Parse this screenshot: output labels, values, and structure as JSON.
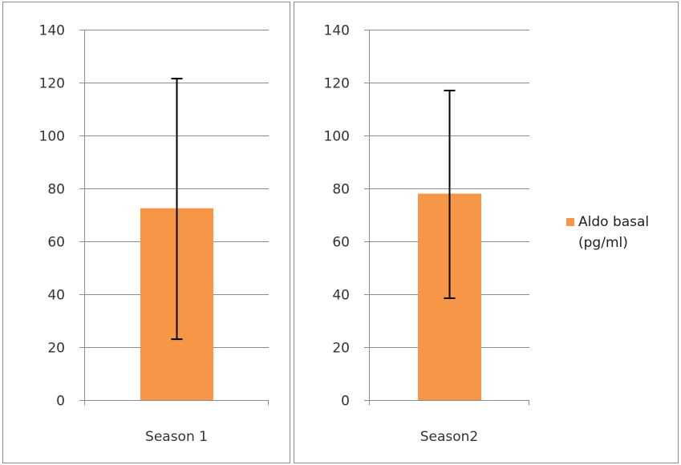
{
  "chart_data": [
    {
      "type": "bar",
      "categories": [
        "Season 1"
      ],
      "series": [
        {
          "name": "Aldo basal (pg/ml)",
          "values": [
            72.5
          ],
          "error_low": [
            23
          ],
          "error_high": [
            121.5
          ]
        }
      ],
      "ylim": [
        0,
        140
      ],
      "yticks": [
        0,
        20,
        40,
        60,
        80,
        100,
        120,
        140
      ],
      "grid": true,
      "bar_color": "#F79646"
    },
    {
      "type": "bar",
      "categories": [
        "Season2"
      ],
      "series": [
        {
          "name": "Aldo basal (pg/ml)",
          "values": [
            78
          ],
          "error_low": [
            38.5
          ],
          "error_high": [
            117
          ]
        }
      ],
      "ylim": [
        0,
        140
      ],
      "yticks": [
        0,
        20,
        40,
        60,
        80,
        100,
        120,
        140
      ],
      "grid": true,
      "bar_color": "#F79646"
    }
  ],
  "legend": {
    "label": "Aldo basal (pg/ml)",
    "color": "#F79646",
    "position": "right"
  }
}
